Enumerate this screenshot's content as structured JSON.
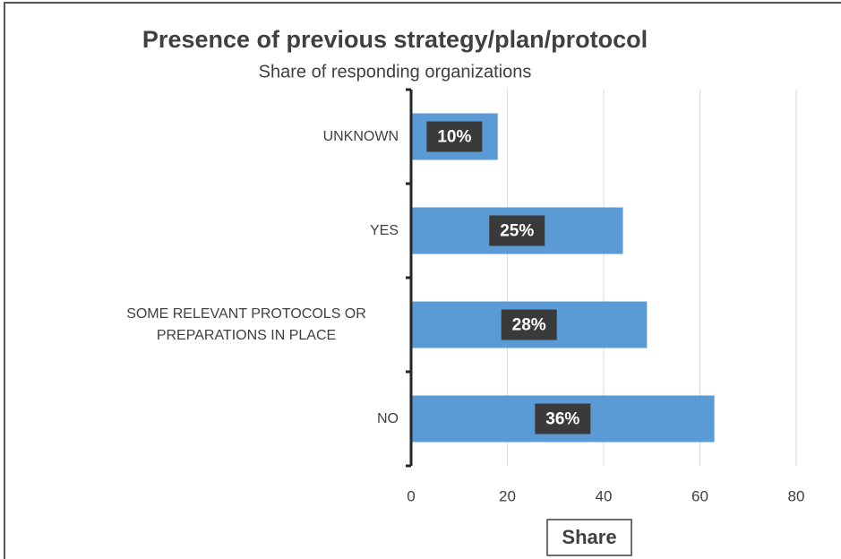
{
  "chart_data": {
    "type": "barh",
    "title": "Presence of previous strategy/plan/protocol",
    "subtitle": "Share of responding organizations",
    "x_label": "Share",
    "categories": [
      "UNKNOWN",
      "YES",
      "SOME RELEVANT PROTOCOLS OR PREPARATIONS IN PLACE",
      "NO"
    ],
    "values": [
      18,
      44,
      49,
      63
    ],
    "value_labels": [
      "10%",
      "25%",
      "28%",
      "36%"
    ],
    "color": "#5b9bd5",
    "xlim": [
      0,
      80
    ],
    "xticks": [
      0,
      20,
      40,
      60,
      80
    ],
    "grid": true
  }
}
